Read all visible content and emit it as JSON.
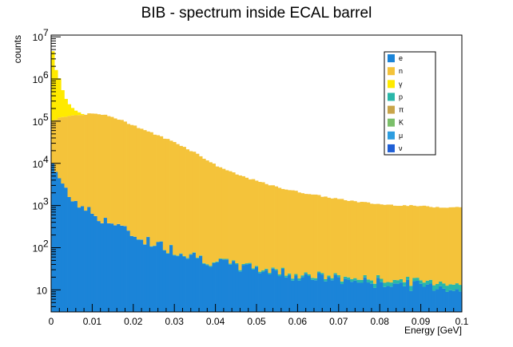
{
  "chart_data": {
    "type": "bar",
    "title": "BIB - spectrum inside ECAL barrel",
    "xlabel": "Energy [GeV]",
    "ylabel": "counts",
    "x_range": [
      0,
      0.1
    ],
    "y_scale": "log",
    "y_range": [
      3,
      11000000
    ],
    "bin_width": 0.0008,
    "stacked": true,
    "grid": false,
    "legend_position": "top-right",
    "x_ticks": [
      "0",
      "0.01",
      "0.02",
      "0.03",
      "0.04",
      "0.05",
      "0.06",
      "0.07",
      "0.08",
      "0.09",
      "0.1"
    ],
    "y_ticks": [
      "10",
      "10^2",
      "10^3",
      "10^4",
      "10^5",
      "10^6",
      "10^7"
    ],
    "series": [
      {
        "name": "e",
        "color": "#1b84d8",
        "x": [
          0.0004,
          0.0012,
          0.002,
          0.003,
          0.005,
          0.0075,
          0.01,
          0.015,
          0.02,
          0.025,
          0.03,
          0.035,
          0.04,
          0.045,
          0.05,
          0.055,
          0.06,
          0.065,
          0.07,
          0.075,
          0.08,
          0.085,
          0.09,
          0.095,
          0.0996
        ],
        "values": [
          10000,
          6500,
          4200,
          2800,
          1700,
          950,
          650,
          380,
          200,
          130,
          90,
          65,
          45,
          38,
          32,
          27,
          22,
          20,
          18,
          16,
          15,
          14,
          13,
          12,
          10
        ]
      },
      {
        "name": "n",
        "color": "#f4c33a",
        "x": [
          0.0004,
          0.002,
          0.004,
          0.006,
          0.008,
          0.01,
          0.012,
          0.015,
          0.02,
          0.025,
          0.03,
          0.035,
          0.04,
          0.045,
          0.05,
          0.055,
          0.06,
          0.065,
          0.07,
          0.075,
          0.08,
          0.085,
          0.09,
          0.095,
          0.0996
        ],
        "values": [
          95000,
          120000,
          125000,
          135000,
          145000,
          150000,
          145000,
          125000,
          80000,
          50000,
          32000,
          18000,
          9000,
          5500,
          3800,
          2700,
          2100,
          1700,
          1400,
          1200,
          1050,
          1000,
          950,
          900,
          900
        ]
      },
      {
        "name": "γ",
        "color": "#ffea00",
        "x": [
          0.0004,
          0.0012,
          0.002,
          0.003,
          0.004,
          0.005,
          0.006,
          0.007,
          0.008
        ],
        "values": [
          4500000,
          1500000,
          900000,
          350000,
          150000,
          80000,
          40000,
          20000,
          0
        ]
      },
      {
        "name": "p",
        "color": "#2ab7a9",
        "x": [
          0.07,
          0.08,
          0.09,
          0.0996
        ],
        "values": [
          2,
          3,
          3,
          4
        ]
      },
      {
        "name": "π",
        "color": "#c9a54a",
        "x": [],
        "values": []
      },
      {
        "name": "K",
        "color": "#7bbf6a",
        "x": [],
        "values": []
      },
      {
        "name": "μ",
        "color": "#2d9de0",
        "x": [],
        "values": []
      },
      {
        "name": "ν",
        "color": "#1f5fd6",
        "x": [],
        "values": []
      }
    ]
  }
}
